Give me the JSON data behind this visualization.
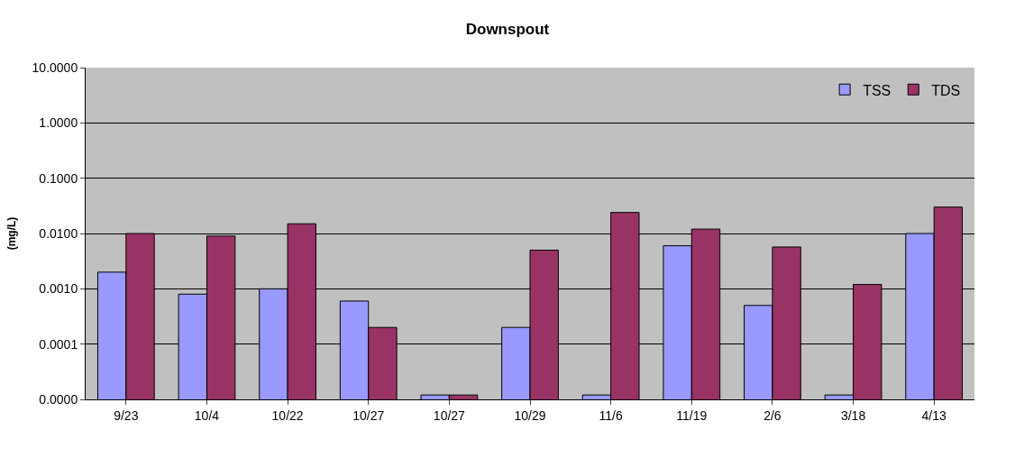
{
  "chart_data": {
    "type": "bar",
    "title": "Downspout",
    "ylabel": "(mg/L)",
    "categories": [
      "9/23",
      "10/4",
      "10/22",
      "10/27",
      "10/27",
      "10/29",
      "11/6",
      "11/19",
      "2/6",
      "3/18",
      "4/13"
    ],
    "series": [
      {
        "name": "TSS",
        "color": "#9999ff",
        "values": [
          0.002,
          0.0008,
          0.001,
          0.0006,
          1.2e-05,
          0.0002,
          1.2e-05,
          0.006,
          0.0005,
          1.2e-05,
          0.01
        ]
      },
      {
        "name": "TDS",
        "color": "#993366",
        "values": [
          0.01,
          0.009,
          0.015,
          0.0002,
          1.2e-05,
          0.005,
          0.024,
          0.012,
          0.0057,
          0.0012,
          0.03
        ]
      }
    ],
    "log": "y",
    "ylim": [
      1e-05,
      10
    ],
    "yticks": [
      {
        "value": 1e-05,
        "label": "0.0000"
      },
      {
        "value": 0.0001,
        "label": "0.0001"
      },
      {
        "value": 0.001,
        "label": "0.0010"
      },
      {
        "value": 0.01,
        "label": "0.0100"
      },
      {
        "value": 0.1,
        "label": "0.1000"
      },
      {
        "value": 1,
        "label": "1.0000"
      },
      {
        "value": 10,
        "label": "10.0000"
      }
    ],
    "grid": "y",
    "legend": "top right"
  }
}
